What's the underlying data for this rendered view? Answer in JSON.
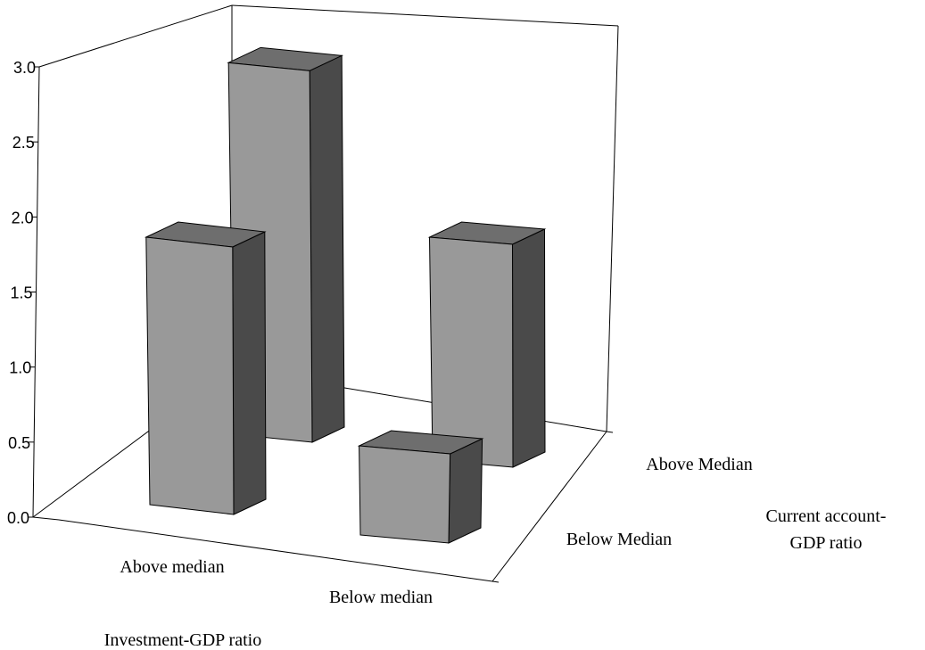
{
  "chart_data": {
    "type": "bar",
    "title": "",
    "zlim": [
      0,
      3.0
    ],
    "z_ticks": [
      "0.0",
      "0.5",
      "1.0",
      "1.5",
      "2.0",
      "2.5",
      "3.0"
    ],
    "x_axis": {
      "label": "Investment-GDP ratio",
      "categories": [
        "Above median",
        "Below median"
      ]
    },
    "y_axis": {
      "label_line1": "Current account-",
      "label_line2": "GDP ratio",
      "categories": [
        "Below Median",
        "Above Median"
      ]
    },
    "bars": [
      {
        "investment": "Above median",
        "current_account": "Below Median",
        "value": 1.8
      },
      {
        "investment": "Above median",
        "current_account": "Above Median",
        "value": 2.5
      },
      {
        "investment": "Below median",
        "current_account": "Below Median",
        "value": 0.6
      },
      {
        "investment": "Below median",
        "current_account": "Above Median",
        "value": 1.5
      }
    ],
    "colors": {
      "front": "#999999",
      "top": "#6e6e6e",
      "side": "#4a4a4a"
    }
  }
}
